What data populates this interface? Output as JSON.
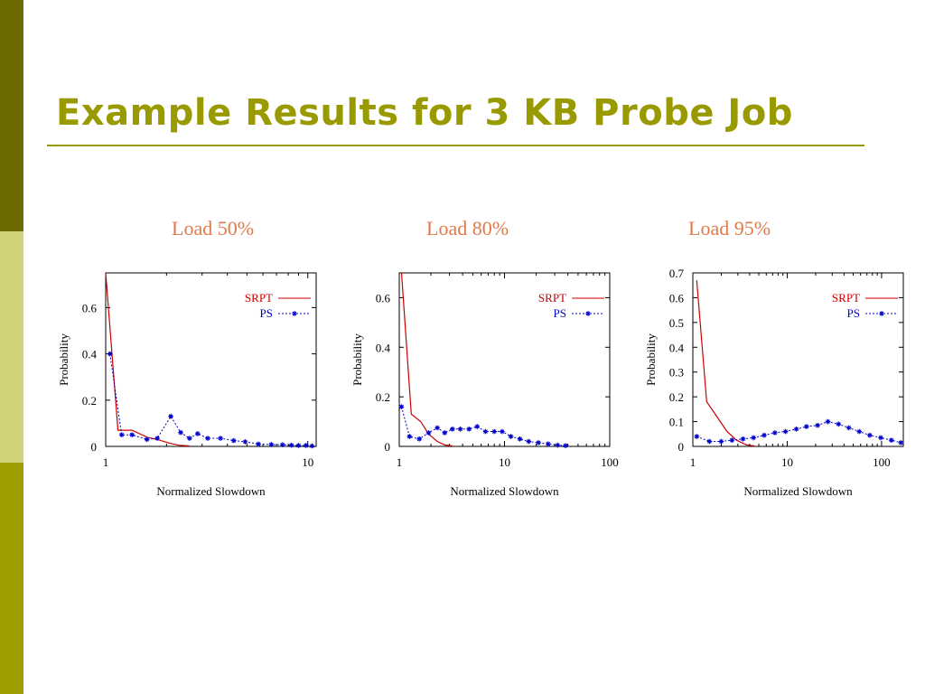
{
  "slide": {
    "title": "Example Results for 3 KB Probe Job",
    "colors": {
      "title": "#999900",
      "label": "#e07a4a",
      "srpt": "#cc0000",
      "ps": "#0000cc"
    }
  },
  "panels": [
    {
      "label": "Load 50%"
    },
    {
      "label": "Load 80%"
    },
    {
      "label": "Load  95%"
    }
  ],
  "chart_data": [
    {
      "type": "line",
      "title": "Load 50%",
      "xlabel": "Normalized Slowdown",
      "ylabel": "Probability",
      "xscale": "log",
      "xlim": [
        1,
        11
      ],
      "ylim": [
        0,
        0.75
      ],
      "xticks": [
        1,
        10
      ],
      "xtick_labels": [
        "1",
        "10"
      ],
      "yticks": [
        0,
        0.2,
        0.4,
        0.6
      ],
      "ytick_labels": [
        "0",
        "0.2",
        "0.4",
        "0.6"
      ],
      "legend_position": "top-right",
      "series": [
        {
          "name": "SRPT",
          "marker": "none",
          "x": [
            1,
            1.15,
            1.35,
            1.6,
            1.8,
            2.05,
            2.3,
            2.6
          ],
          "y": [
            0.75,
            0.07,
            0.07,
            0.04,
            0.03,
            0.015,
            0.005,
            0.002
          ]
        },
        {
          "name": "PS",
          "marker": "star",
          "x": [
            1.05,
            1.2,
            1.35,
            1.6,
            1.8,
            2.1,
            2.35,
            2.6,
            2.85,
            3.2,
            3.7,
            4.3,
            4.9,
            5.7,
            6.6,
            7.5,
            8.3,
            9.0,
            9.8,
            10.5
          ],
          "y": [
            0.4,
            0.05,
            0.05,
            0.03,
            0.035,
            0.13,
            0.06,
            0.035,
            0.055,
            0.035,
            0.035,
            0.025,
            0.02,
            0.01,
            0.008,
            0.007,
            0.005,
            0.004,
            0.004,
            0.002
          ]
        }
      ]
    },
    {
      "type": "line",
      "title": "Load 80%",
      "xlabel": "Normalized Slowdown",
      "ylabel": "Probability",
      "xscale": "log",
      "xlim": [
        1,
        100
      ],
      "ylim": [
        0,
        0.7
      ],
      "xticks": [
        1,
        10,
        100
      ],
      "xtick_labels": [
        "1",
        "10",
        "100"
      ],
      "yticks": [
        0,
        0.2,
        0.4,
        0.6
      ],
      "ytick_labels": [
        "0",
        "0.2",
        "0.4",
        "0.6"
      ],
      "legend_position": "top-right",
      "series": [
        {
          "name": "SRPT",
          "marker": "none",
          "x": [
            1.05,
            1.3,
            1.6,
            1.9,
            2.3,
            2.7,
            3.2
          ],
          "y": [
            0.7,
            0.13,
            0.1,
            0.05,
            0.02,
            0.006,
            0.002
          ]
        },
        {
          "name": "PS",
          "marker": "star",
          "x": [
            1.05,
            1.25,
            1.55,
            1.9,
            2.3,
            2.7,
            3.2,
            3.8,
            4.6,
            5.5,
            6.6,
            8.0,
            9.5,
            11.5,
            14,
            17,
            21,
            26,
            32,
            38
          ],
          "y": [
            0.16,
            0.04,
            0.03,
            0.055,
            0.075,
            0.055,
            0.07,
            0.07,
            0.07,
            0.08,
            0.06,
            0.06,
            0.06,
            0.04,
            0.03,
            0.02,
            0.015,
            0.01,
            0.005,
            0.003
          ]
        }
      ]
    },
    {
      "type": "line",
      "title": "Load  95%",
      "xlabel": "Normalized Slowdown",
      "ylabel": "Probability",
      "xscale": "log",
      "xlim": [
        1,
        170
      ],
      "ylim": [
        0,
        0.7
      ],
      "xticks": [
        1,
        10,
        100
      ],
      "xtick_labels": [
        "1",
        "10",
        "100"
      ],
      "yticks": [
        0,
        0.1,
        0.2,
        0.3,
        0.4,
        0.5,
        0.6,
        0.7
      ],
      "ytick_labels": [
        "0",
        "0.1",
        "0.2",
        "0.3",
        "0.4",
        "0.5",
        "0.6",
        "0.7"
      ],
      "legend_position": "top-right",
      "series": [
        {
          "name": "SRPT",
          "marker": "none",
          "x": [
            1.1,
            1.4,
            1.8,
            2.3,
            2.9,
            3.7,
            4.5
          ],
          "y": [
            0.67,
            0.18,
            0.12,
            0.06,
            0.025,
            0.006,
            0.002
          ]
        },
        {
          "name": "PS",
          "marker": "star",
          "x": [
            1.1,
            1.5,
            2.0,
            2.6,
            3.4,
            4.4,
            5.7,
            7.4,
            9.6,
            12.5,
            16,
            21,
            27,
            35,
            45,
            58,
            75,
            98,
            127,
            160
          ],
          "y": [
            0.04,
            0.02,
            0.02,
            0.025,
            0.03,
            0.035,
            0.045,
            0.055,
            0.06,
            0.07,
            0.08,
            0.085,
            0.1,
            0.09,
            0.075,
            0.06,
            0.045,
            0.035,
            0.025,
            0.015
          ]
        }
      ]
    }
  ]
}
